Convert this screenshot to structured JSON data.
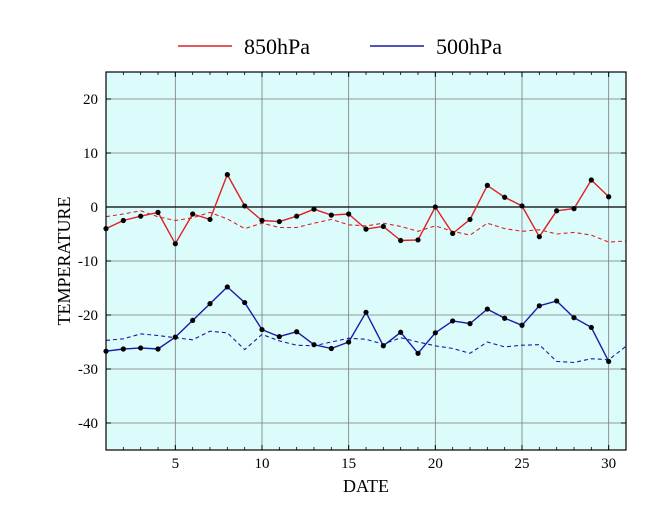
{
  "chart_data": {
    "type": "line",
    "xlabel": "DATE",
    "ylabel": "TEMPERATURE",
    "xlim": [
      1,
      31
    ],
    "ylim": [
      -45,
      25
    ],
    "xticks": [
      5,
      10,
      15,
      20,
      25,
      30
    ],
    "yticks": [
      20,
      10,
      0,
      -10,
      -20,
      -30,
      -40
    ],
    "grid": true,
    "background": "#dcfbfb",
    "zero_line": true,
    "legend_position": "top",
    "legend": [
      {
        "label": "850hPa",
        "color": "#e02020"
      },
      {
        "label": "500hPa",
        "color": "#1a1aa8"
      }
    ],
    "series": [
      {
        "name": "850hPa",
        "style": "solid-markers",
        "color": "#e02020",
        "x": [
          1,
          2,
          3,
          4,
          5,
          6,
          7,
          8,
          9,
          10,
          11,
          12,
          13,
          14,
          15,
          16,
          17,
          18,
          19,
          20,
          21,
          22,
          23,
          24,
          25,
          26,
          27,
          28,
          29,
          30
        ],
        "values": [
          -4,
          -2.5,
          -1.7,
          -1,
          -6.8,
          -1.3,
          -2.3,
          6,
          0.2,
          -2.5,
          -2.7,
          -1.7,
          -0.4,
          -1.5,
          -1.3,
          -4.1,
          -3.6,
          -6.2,
          -6.1,
          0,
          -4.9,
          -2.3,
          4,
          1.8,
          0.2,
          -5.5,
          -0.7,
          -0.3,
          5,
          1.9
        ]
      },
      {
        "name": "500hPa",
        "style": "solid-markers",
        "color": "#1a1aa8",
        "x": [
          1,
          2,
          3,
          4,
          5,
          6,
          7,
          8,
          9,
          10,
          11,
          12,
          13,
          14,
          15,
          16,
          17,
          18,
          19,
          20,
          21,
          22,
          23,
          24,
          25,
          26,
          27,
          28,
          29,
          30
        ],
        "values": [
          -26.7,
          -26.3,
          -26.1,
          -26.3,
          -24.1,
          -21,
          -17.9,
          -14.8,
          -17.7,
          -22.7,
          -24,
          -23.1,
          -25.5,
          -26.2,
          -25,
          -19.5,
          -25.7,
          -23.2,
          -27.1,
          -23.3,
          -21.1,
          -21.6,
          -18.9,
          -20.6,
          -21.9,
          -18.3,
          -17.4,
          -20.5,
          -22.3,
          -28.6
        ]
      },
      {
        "name": "",
        "style": "dashed",
        "color": "#e02020",
        "x": [
          1,
          2,
          3,
          4,
          5,
          6,
          7,
          8,
          9,
          10,
          11,
          12,
          13,
          14,
          15,
          16,
          17,
          18,
          19,
          20,
          21,
          22,
          23,
          24,
          25,
          26,
          27,
          28,
          29,
          30,
          31
        ],
        "values": [
          -1.8,
          -1.3,
          -0.7,
          -1.8,
          -2.5,
          -2,
          -1,
          -2.2,
          -4,
          -3,
          -3.8,
          -3.8,
          -3,
          -2.3,
          -3.3,
          -3.5,
          -3,
          -3.6,
          -4.5,
          -3.5,
          -4.5,
          -5.2,
          -3,
          -4,
          -4.5,
          -4.2,
          -5,
          -4.7,
          -5.2,
          -6.5,
          -6.3
        ]
      },
      {
        "name": "",
        "style": "dashed",
        "color": "#1a1aa8",
        "x": [
          1,
          2,
          3,
          4,
          5,
          6,
          7,
          8,
          9,
          10,
          11,
          12,
          13,
          14,
          15,
          16,
          17,
          18,
          19,
          20,
          21,
          22,
          23,
          24,
          25,
          26,
          27,
          28,
          29,
          30,
          31
        ],
        "values": [
          -24.7,
          -24.4,
          -23.5,
          -23.8,
          -24.2,
          -24.6,
          -23,
          -23.3,
          -26.4,
          -23.6,
          -24.8,
          -25.6,
          -25.7,
          -25,
          -24.3,
          -24.5,
          -25.4,
          -24.2,
          -25,
          -25.7,
          -26.2,
          -27.1,
          -25,
          -25.9,
          -25.6,
          -25.5,
          -28.6,
          -28.8,
          -28.1,
          -28.3,
          -25.8
        ]
      }
    ]
  }
}
